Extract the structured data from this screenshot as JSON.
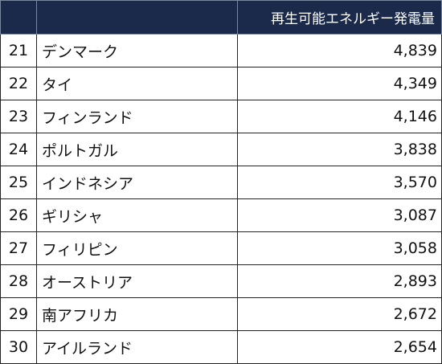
{
  "table": {
    "header": {
      "rank": "",
      "country": "",
      "value": "再生可能エネルギー発電量"
    },
    "rows": [
      {
        "rank": "21",
        "country": "デンマーク",
        "value": "4,839"
      },
      {
        "rank": "22",
        "country": "タイ",
        "value": "4,349"
      },
      {
        "rank": "23",
        "country": "フィンランド",
        "value": "4,146"
      },
      {
        "rank": "24",
        "country": "ポルトガル",
        "value": "3,838"
      },
      {
        "rank": "25",
        "country": "インドネシア",
        "value": "3,570"
      },
      {
        "rank": "26",
        "country": "ギリシャ",
        "value": "3,087"
      },
      {
        "rank": "27",
        "country": "フィリピン",
        "value": "3,058"
      },
      {
        "rank": "28",
        "country": "オーストリア",
        "value": "2,893"
      },
      {
        "rank": "29",
        "country": "南アフリカ",
        "value": "2,672"
      },
      {
        "rank": "30",
        "country": "アイルランド",
        "value": "2,654"
      }
    ],
    "colors": {
      "header_background": "#1b2a4a",
      "header_text": "#ffffff",
      "grid_line": "#222222"
    }
  }
}
